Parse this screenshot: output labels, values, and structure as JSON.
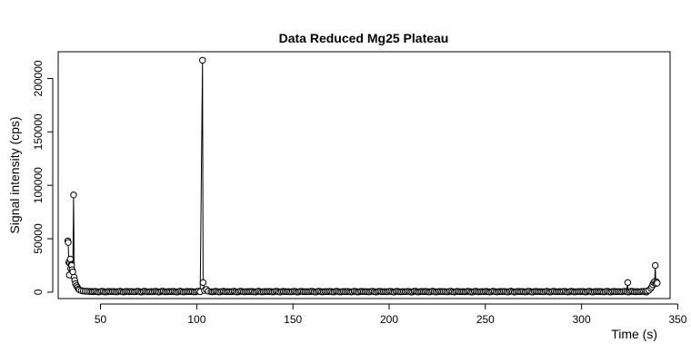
{
  "chart_data": {
    "type": "scatter",
    "title": "Data Reduced Mg25 Plateau",
    "xlabel": "Time (s)",
    "ylabel": "Signal intensity (cps)",
    "xlim": [
      28,
      346
    ],
    "ylim": [
      -6000,
      225000
    ],
    "x_ticks": [
      50,
      100,
      150,
      200,
      250,
      300,
      350
    ],
    "y_ticks": [
      0,
      50000,
      100000,
      150000,
      200000
    ],
    "grid": false,
    "legend": "none",
    "marker": "open-circle",
    "connected_line": true,
    "series": [
      {
        "points": [
          [
            33,
            48000
          ],
          [
            33.2,
            46500
          ],
          [
            33.5,
            28000
          ],
          [
            33.8,
            16000
          ],
          [
            34,
            27000
          ],
          [
            34.3,
            31000
          ],
          [
            34.5,
            22000
          ],
          [
            34.8,
            26000
          ],
          [
            35,
            25000
          ],
          [
            35.3,
            21000
          ],
          [
            35.6,
            19000
          ],
          [
            36,
            91000
          ],
          [
            36.3,
            14000
          ],
          [
            36.6,
            11000
          ],
          [
            37,
            8000
          ],
          [
            37.5,
            6000
          ],
          [
            38,
            4500
          ],
          [
            38.5,
            3000
          ],
          [
            39,
            2200
          ],
          [
            40,
            1500
          ],
          [
            41,
            1100
          ],
          [
            42,
            900
          ],
          [
            43,
            800
          ],
          [
            44,
            700
          ],
          [
            45,
            650
          ],
          [
            103,
            217000
          ],
          [
            103.3,
            9000
          ],
          [
            104,
            1500
          ],
          [
            105,
            2500
          ],
          [
            106,
            900
          ],
          [
            324,
            9000
          ],
          [
            334,
            1200
          ],
          [
            335,
            1800
          ],
          [
            336,
            3500
          ],
          [
            336.5,
            5000
          ],
          [
            337,
            7000
          ],
          [
            337.5,
            9000
          ],
          [
            338,
            10000
          ],
          [
            338.3,
            25000
          ],
          [
            338.6,
            8000
          ],
          [
            339,
            9500
          ],
          [
            339.3,
            8500
          ]
        ]
      }
    ]
  }
}
